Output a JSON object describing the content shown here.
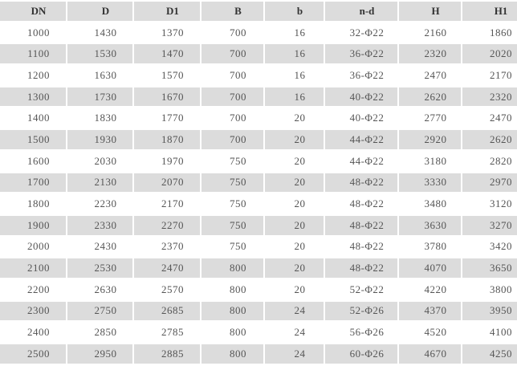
{
  "table": {
    "headers": [
      "DN",
      "D",
      "D1",
      "B",
      "b",
      "n-d",
      "H",
      "H1"
    ],
    "rows": [
      [
        "1000",
        "1430",
        "1370",
        "700",
        "16",
        "32-Φ22",
        "2160",
        "1860"
      ],
      [
        "1100",
        "1530",
        "1470",
        "700",
        "16",
        "36-Φ22",
        "2320",
        "2020"
      ],
      [
        "1200",
        "1630",
        "1570",
        "700",
        "16",
        "36-Φ22",
        "2470",
        "2170"
      ],
      [
        "1300",
        "1730",
        "1670",
        "700",
        "16",
        "40-Φ22",
        "2620",
        "2320"
      ],
      [
        "1400",
        "1830",
        "1770",
        "700",
        "20",
        "40-Φ22",
        "2770",
        "2470"
      ],
      [
        "1500",
        "1930",
        "1870",
        "700",
        "20",
        "44-Φ22",
        "2920",
        "2620"
      ],
      [
        "1600",
        "2030",
        "1970",
        "750",
        "20",
        "44-Φ22",
        "3180",
        "2820"
      ],
      [
        "1700",
        "2130",
        "2070",
        "750",
        "20",
        "48-Φ22",
        "3330",
        "2970"
      ],
      [
        "1800",
        "2230",
        "2170",
        "750",
        "20",
        "48-Φ22",
        "3480",
        "3120"
      ],
      [
        "1900",
        "2330",
        "2270",
        "750",
        "20",
        "48-Φ22",
        "3630",
        "3270"
      ],
      [
        "2000",
        "2430",
        "2370",
        "750",
        "20",
        "48-Φ22",
        "3780",
        "3420"
      ],
      [
        "2100",
        "2530",
        "2470",
        "800",
        "20",
        "48-Φ22",
        "4070",
        "3650"
      ],
      [
        "2200",
        "2630",
        "2570",
        "800",
        "20",
        "52-Φ22",
        "4220",
        "3800"
      ],
      [
        "2300",
        "2750",
        "2685",
        "800",
        "24",
        "52-Φ26",
        "4370",
        "3950"
      ],
      [
        "2400",
        "2850",
        "2785",
        "800",
        "24",
        "56-Φ26",
        "4520",
        "4100"
      ],
      [
        "2500",
        "2950",
        "2885",
        "800",
        "24",
        "60-Φ26",
        "4670",
        "4250"
      ]
    ]
  },
  "colors": {
    "stripe": "#dcdcdc",
    "text": "#555555"
  }
}
